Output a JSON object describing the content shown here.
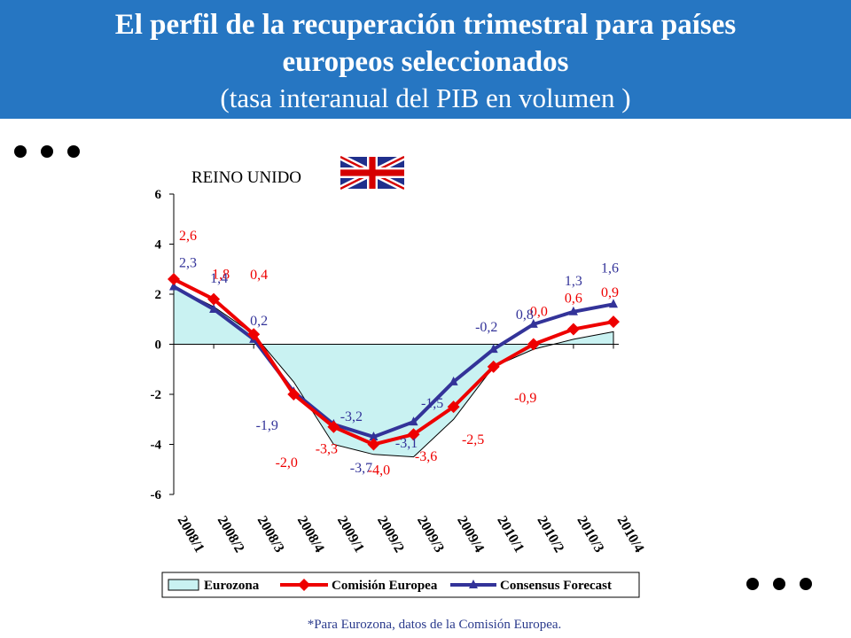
{
  "header": {
    "title_line1": "El perfil de la recuperación trimestral para países",
    "title_line2": "europeos seleccionados",
    "subtitle": "(tasa interanual del PIB en volumen )"
  },
  "country_label": "REINO UNIDO",
  "footnote": "*Para Eurozona, datos de la Comisión Europea.",
  "colors": {
    "header_bg": "#2676c2",
    "area_fill": "#c9f2f2",
    "comision": "#ee0000",
    "consensus": "#333399",
    "flag_blue": "#1f2f8c",
    "flag_red": "#d60000"
  },
  "chart_data": {
    "type": "line",
    "categories": [
      "2008/1",
      "2008/2",
      "2008/3",
      "2008/4",
      "2009/1",
      "2009/2",
      "2009/3",
      "2009/4",
      "2010/1",
      "2010/2",
      "2010/3",
      "2010/4"
    ],
    "ylim": [
      -6,
      6
    ],
    "yticks": [
      -6,
      -4,
      -2,
      0,
      2,
      4,
      6
    ],
    "series": [
      {
        "name": "Eurozona",
        "kind": "area",
        "values": [
          2.3,
          1.5,
          0.4,
          -1.5,
          -4.0,
          -4.4,
          -4.5,
          -3.0,
          -0.9,
          -0.2,
          0.2,
          0.5
        ]
      },
      {
        "name": "Comisión Europea",
        "kind": "line",
        "marker": "diamond",
        "values": [
          2.6,
          1.8,
          0.4,
          -2.0,
          -3.3,
          -4.0,
          -3.6,
          -2.5,
          -0.9,
          0.0,
          0.6,
          0.9
        ],
        "labels": [
          "2,6",
          "1,8",
          "0,4",
          "-2,0",
          "-3,3",
          "-4,0",
          "-3,6",
          "-2,5",
          "-0,9",
          "0,0",
          "0,6",
          "0,9"
        ]
      },
      {
        "name": "Consensus Forecast",
        "kind": "line",
        "marker": "triangle",
        "values": [
          2.3,
          1.4,
          0.2,
          -1.9,
          -3.2,
          -3.7,
          -3.1,
          -1.5,
          -0.2,
          0.8,
          1.3,
          1.6
        ],
        "labels": [
          "2,3",
          "1,4",
          "0,2",
          "-1,9",
          "-3,2",
          "-3,7",
          "-3,1",
          "-1,5",
          "-0,2",
          "0,8",
          "1,3",
          "1,6"
        ]
      }
    ],
    "legend_position": "bottom"
  }
}
